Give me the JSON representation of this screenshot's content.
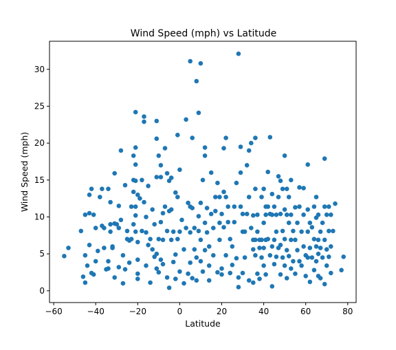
{
  "chart_data": {
    "type": "scatter",
    "title": "Wind Speed (mph) vs Latitude",
    "xlabel": "Latitude",
    "ylabel": "Wind Speed (mph)",
    "xlim": [
      -62,
      84
    ],
    "ylim": [
      -1.6,
      33.8
    ],
    "xticks": [
      -60,
      -40,
      -20,
      0,
      20,
      40,
      60,
      80
    ],
    "yticks": [
      0,
      5,
      10,
      15,
      20,
      25,
      30
    ],
    "grid": false,
    "legend": "none",
    "marker_color": "#1f77b4",
    "points": [
      [
        -55,
        4.7
      ],
      [
        -53,
        5.8
      ],
      [
        -47,
        8.1
      ],
      [
        -46,
        1.9
      ],
      [
        -45,
        10.3
      ],
      [
        -45,
        4.8
      ],
      [
        -45,
        1.1
      ],
      [
        -44,
        3.4
      ],
      [
        -43,
        6.2
      ],
      [
        -43,
        13.0
      ],
      [
        -43,
        10.5
      ],
      [
        -42,
        13.8
      ],
      [
        -42,
        2.4
      ],
      [
        -41,
        2.2
      ],
      [
        -41,
        10.3
      ],
      [
        -40,
        8.5
      ],
      [
        -40,
        4.0
      ],
      [
        -39,
        5.4
      ],
      [
        -38,
        12.7
      ],
      [
        -37,
        13.8
      ],
      [
        -37,
        8.8
      ],
      [
        -36,
        8.5
      ],
      [
        -36,
        5.8
      ],
      [
        -35,
        2.9
      ],
      [
        -34,
        13.8
      ],
      [
        -34,
        4.0
      ],
      [
        -34,
        3.0
      ],
      [
        -33,
        12.0
      ],
      [
        -33,
        9.0
      ],
      [
        -33,
        8.0
      ],
      [
        -32,
        6.0
      ],
      [
        -32,
        5.8
      ],
      [
        -31,
        9.1
      ],
      [
        -31,
        1.8
      ],
      [
        -31,
        15.9
      ],
      [
        -30,
        9.0
      ],
      [
        -29,
        11.5
      ],
      [
        -29,
        8.5
      ],
      [
        -29,
        3.2
      ],
      [
        -28,
        19.0
      ],
      [
        -28,
        9.6
      ],
      [
        -27,
        4.8
      ],
      [
        -27,
        1.0
      ],
      [
        -26,
        2.9
      ],
      [
        -26,
        14.3
      ],
      [
        -25,
        7.0
      ],
      [
        -25,
        8.1
      ],
      [
        -24,
        6.8
      ],
      [
        -24,
        3.8
      ],
      [
        -23,
        7.0
      ],
      [
        -23,
        11.4
      ],
      [
        -22,
        18.3
      ],
      [
        -22,
        15.0
      ],
      [
        -22,
        13.4
      ],
      [
        -22,
        9.0
      ],
      [
        -21,
        24.2
      ],
      [
        -21,
        19.4
      ],
      [
        -21,
        14.9
      ],
      [
        -21,
        17.1
      ],
      [
        -21,
        11.4
      ],
      [
        -21,
        10.2
      ],
      [
        -21,
        8.0
      ],
      [
        -20,
        13.0
      ],
      [
        -20,
        6.6
      ],
      [
        -20,
        4.2
      ],
      [
        -20,
        2.3
      ],
      [
        -20,
        1.6
      ],
      [
        -19,
        12.5
      ],
      [
        -18,
        15.0
      ],
      [
        -18,
        8.1
      ],
      [
        -17,
        23.6
      ],
      [
        -17,
        22.9
      ],
      [
        -17,
        12.0
      ],
      [
        -16,
        3.4
      ],
      [
        -16,
        7.9
      ],
      [
        -16,
        10.0
      ],
      [
        -15,
        6.2
      ],
      [
        -15,
        14.2
      ],
      [
        -14,
        7.0
      ],
      [
        -14,
        1.1
      ],
      [
        -13,
        5.6
      ],
      [
        -13,
        11.0
      ],
      [
        -12,
        9.0
      ],
      [
        -12,
        4.6
      ],
      [
        -11,
        23.0
      ],
      [
        -11,
        20.6
      ],
      [
        -11,
        15.4
      ],
      [
        -11,
        5.0
      ],
      [
        -11,
        3.0
      ],
      [
        -10,
        18.3
      ],
      [
        -10,
        2.5
      ],
      [
        -10,
        7.0
      ],
      [
        -9,
        17.0
      ],
      [
        -9,
        15.4
      ],
      [
        -9,
        9.3
      ],
      [
        -9,
        4.2
      ],
      [
        -8,
        10.5
      ],
      [
        -8,
        6.9
      ],
      [
        -8,
        3.6
      ],
      [
        -7,
        19.3
      ],
      [
        -7,
        11.4
      ],
      [
        -6,
        15.9
      ],
      [
        -6,
        8.1
      ],
      [
        -6,
        1.8
      ],
      [
        -5,
        0.4
      ],
      [
        -5,
        10.8
      ],
      [
        -5,
        14.9
      ],
      [
        -4,
        15.3
      ],
      [
        -4,
        11.0
      ],
      [
        -4,
        6.9
      ],
      [
        -3,
        3.9
      ],
      [
        -3,
        8.0
      ],
      [
        -2,
        4.9
      ],
      [
        -2,
        1.6
      ],
      [
        -2,
        13.3
      ],
      [
        -1,
        21.1
      ],
      [
        -1,
        12.7
      ],
      [
        -1,
        7.0
      ],
      [
        0,
        16.4
      ],
      [
        0,
        8.0
      ],
      [
        0,
        2.6
      ],
      [
        1,
        9.6
      ],
      [
        2,
        5.6
      ],
      [
        2,
        1.0
      ],
      [
        3,
        8.5
      ],
      [
        3,
        23.2
      ],
      [
        4,
        11.9
      ],
      [
        4,
        2.3
      ],
      [
        5,
        31.1
      ],
      [
        5,
        11.4
      ],
      [
        5,
        7.9
      ],
      [
        5,
        3.8
      ],
      [
        6,
        11.2
      ],
      [
        6,
        20.7
      ],
      [
        6,
        1.7
      ],
      [
        7,
        8.5
      ],
      [
        7,
        5.6
      ],
      [
        8,
        28.4
      ],
      [
        8,
        4.5
      ],
      [
        8,
        1.4
      ],
      [
        9,
        24.1
      ],
      [
        9,
        10.1
      ],
      [
        9,
        8.1
      ],
      [
        10,
        30.8
      ],
      [
        10,
        11.9
      ],
      [
        10,
        6.9
      ],
      [
        10,
        4.0
      ],
      [
        11,
        15.0
      ],
      [
        11,
        2.6
      ],
      [
        12,
        19.4
      ],
      [
        12,
        18.3
      ],
      [
        12,
        9.2
      ],
      [
        12,
        5.5
      ],
      [
        13,
        11.2
      ],
      [
        13,
        7.9
      ],
      [
        14,
        3.4
      ],
      [
        14,
        6.0
      ],
      [
        14,
        1.4
      ],
      [
        15,
        16.0
      ],
      [
        15,
        10.4
      ],
      [
        16,
        8.5
      ],
      [
        16,
        4.8
      ],
      [
        17,
        12.7
      ],
      [
        17,
        10.8
      ],
      [
        18,
        14.6
      ],
      [
        18,
        2.5
      ],
      [
        19,
        12.7
      ],
      [
        19,
        6.9
      ],
      [
        19,
        9.2
      ],
      [
        20,
        3.0
      ],
      [
        20,
        2.2
      ],
      [
        20,
        10.4
      ],
      [
        21,
        19.3
      ],
      [
        21,
        13.4
      ],
      [
        21,
        8.6
      ],
      [
        22,
        20.7
      ],
      [
        22,
        12.7
      ],
      [
        22,
        4.8
      ],
      [
        23,
        11.4
      ],
      [
        23,
        9.3
      ],
      [
        24,
        7.0
      ],
      [
        24,
        2.4
      ],
      [
        25,
        6.0
      ],
      [
        25,
        3.5
      ],
      [
        26,
        11.4
      ],
      [
        26,
        9.3
      ],
      [
        27,
        14.6
      ],
      [
        27,
        4.4
      ],
      [
        28,
        32.1
      ],
      [
        28,
        0.5
      ],
      [
        28,
        1.8
      ],
      [
        29,
        19.5
      ],
      [
        29,
        11.4
      ],
      [
        29,
        16.0
      ],
      [
        30,
        10.4
      ],
      [
        30,
        8.0
      ],
      [
        30,
        2.4
      ],
      [
        31,
        4.5
      ],
      [
        31,
        8.0
      ],
      [
        32,
        17.0
      ],
      [
        32,
        10.4
      ],
      [
        33,
        19.0
      ],
      [
        33,
        12.7
      ],
      [
        33,
        1.4
      ],
      [
        34,
        20.0
      ],
      [
        34,
        8.5
      ],
      [
        35,
        10.2
      ],
      [
        35,
        5.6
      ],
      [
        35,
        6.9
      ],
      [
        35,
        1.1
      ],
      [
        36,
        20.7
      ],
      [
        36,
        13.8
      ],
      [
        36,
        6.9
      ],
      [
        36,
        4.8
      ],
      [
        37,
        10.3
      ],
      [
        37,
        8.0
      ],
      [
        37,
        2.3
      ],
      [
        38,
        6.9
      ],
      [
        38,
        5.8
      ],
      [
        38,
        1.6
      ],
      [
        39,
        12.7
      ],
      [
        39,
        6.9
      ],
      [
        39,
        4.5
      ],
      [
        40,
        13.8
      ],
      [
        40,
        9.2
      ],
      [
        40,
        5.8
      ],
      [
        40,
        3.4
      ],
      [
        41,
        11.4
      ],
      [
        41,
        6.9
      ],
      [
        41,
        10.3
      ],
      [
        41,
        2.2
      ],
      [
        42,
        16.1
      ],
      [
        42,
        11.4
      ],
      [
        42,
        7.0
      ],
      [
        43,
        20.8
      ],
      [
        43,
        10.4
      ],
      [
        43,
        4.8
      ],
      [
        44,
        13.1
      ],
      [
        44,
        10.3
      ],
      [
        44,
        6.0
      ],
      [
        44,
        0.6
      ],
      [
        45,
        11.4
      ],
      [
        45,
        6.9
      ],
      [
        45,
        3.6
      ],
      [
        46,
        10.3
      ],
      [
        46,
        8.0
      ],
      [
        46,
        4.6
      ],
      [
        47,
        15.5
      ],
      [
        47,
        12.7
      ],
      [
        47,
        5.8
      ],
      [
        48,
        14.9
      ],
      [
        48,
        10.4
      ],
      [
        48,
        6.2
      ],
      [
        48,
        2.2
      ],
      [
        49,
        13.8
      ],
      [
        49,
        8.1
      ],
      [
        49,
        4.5
      ],
      [
        50,
        18.3
      ],
      [
        50,
        11.0
      ],
      [
        50,
        7.0
      ],
      [
        50,
        3.4
      ],
      [
        51,
        13.8
      ],
      [
        51,
        10.3
      ],
      [
        51,
        5.5
      ],
      [
        51,
        1.7
      ],
      [
        52,
        12.7
      ],
      [
        52,
        9.2
      ],
      [
        52,
        4.7
      ],
      [
        53,
        15.0
      ],
      [
        53,
        10.3
      ],
      [
        53,
        6.9
      ],
      [
        53,
        3.0
      ],
      [
        54,
        8.1
      ],
      [
        54,
        4.0
      ],
      [
        55,
        11.3
      ],
      [
        55,
        6.9
      ],
      [
        55,
        2.3
      ],
      [
        56,
        9.2
      ],
      [
        56,
        5.5
      ],
      [
        57,
        14.0
      ],
      [
        57,
        11.4
      ],
      [
        57,
        4.0
      ],
      [
        58,
        8.0
      ],
      [
        58,
        3.4
      ],
      [
        59,
        13.9
      ],
      [
        59,
        10.3
      ],
      [
        59,
        6.0
      ],
      [
        60,
        4.8
      ],
      [
        60,
        2.0
      ],
      [
        61,
        17.1
      ],
      [
        61,
        11.0
      ],
      [
        61,
        8.0
      ],
      [
        61,
        4.5
      ],
      [
        62,
        9.2
      ],
      [
        62,
        5.8
      ],
      [
        62,
        1.2
      ],
      [
        63,
        8.6
      ],
      [
        63,
        4.5
      ],
      [
        64,
        11.4
      ],
      [
        64,
        7.0
      ],
      [
        64,
        2.8
      ],
      [
        65,
        12.7
      ],
      [
        65,
        9.9
      ],
      [
        65,
        6.0
      ],
      [
        65,
        4.0
      ],
      [
        66,
        10.3
      ],
      [
        66,
        6.9
      ],
      [
        66,
        5.0
      ],
      [
        66,
        2.0
      ],
      [
        67,
        8.0
      ],
      [
        67,
        5.8
      ],
      [
        67,
        1.7
      ],
      [
        68,
        9.2
      ],
      [
        68,
        4.5
      ],
      [
        69,
        17.9
      ],
      [
        69,
        11.4
      ],
      [
        69,
        6.9
      ],
      [
        69,
        0.9
      ],
      [
        70,
        10.3
      ],
      [
        70,
        5.6
      ],
      [
        70,
        3.4
      ],
      [
        71,
        11.4
      ],
      [
        71,
        8.1
      ],
      [
        71,
        4.6
      ],
      [
        72,
        10.3
      ],
      [
        72,
        6.0
      ],
      [
        72,
        2.4
      ],
      [
        73,
        8.1
      ],
      [
        74,
        11.8
      ],
      [
        77,
        2.8
      ],
      [
        78,
        4.6
      ]
    ]
  }
}
